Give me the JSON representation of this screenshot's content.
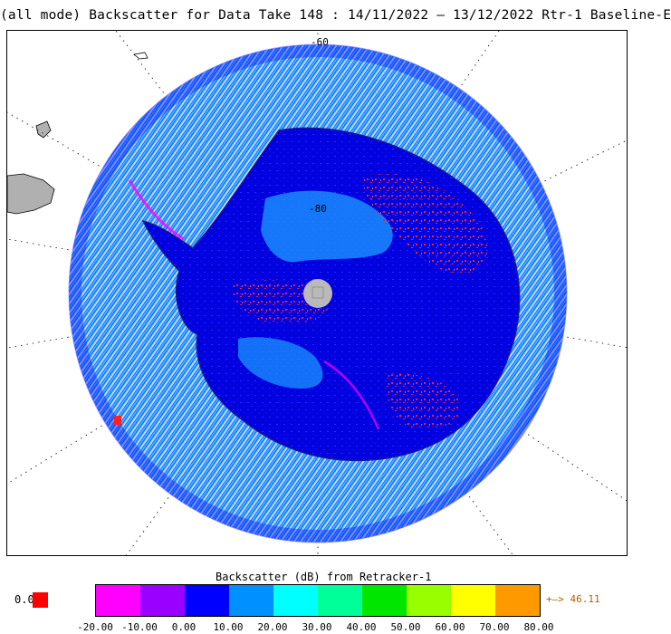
{
  "title": "(all mode) Backscatter for Data Take 148 : 14/11/2022 – 13/12/2022 Rtr-1 Baseline-E",
  "map": {
    "latitude_labels": [
      "-60",
      "-80"
    ]
  },
  "colorbar": {
    "title": "Backscatter (dB) from Retracker-1",
    "missing_label": "0.0",
    "over_label": "46.11",
    "over_arrow": "+–>",
    "ticks": [
      "-20.00",
      "-10.00",
      "0.00",
      "10.00",
      "20.00",
      "30.00",
      "40.00",
      "50.00",
      "60.00",
      "70.00",
      "80.00"
    ],
    "colors": [
      "#ff00ff",
      "#9a00ff",
      "#0000ff",
      "#0090ff",
      "#00ffff",
      "#00ff99",
      "#00e600",
      "#99ff00",
      "#ffff00",
      "#ff9900"
    ]
  }
}
